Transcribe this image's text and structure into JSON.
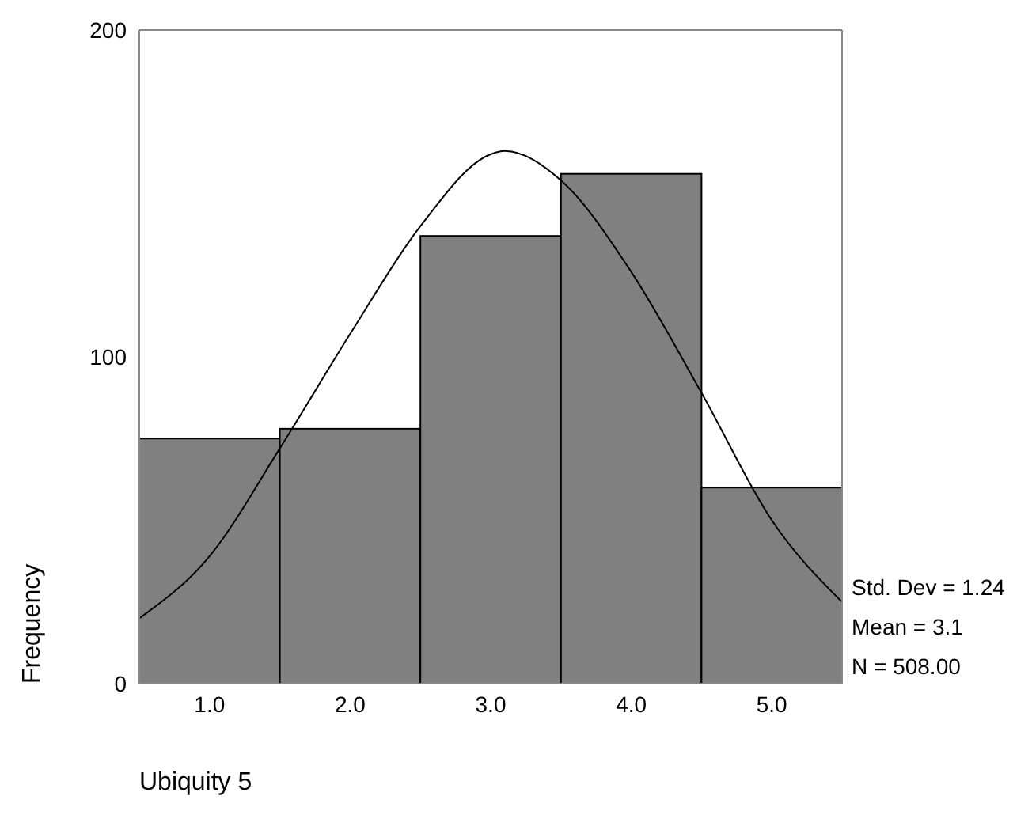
{
  "chart_data": {
    "type": "histogram",
    "xlabel": "Ubiquity 5",
    "ylabel": "Frequency",
    "bins": [
      0.5,
      1.5,
      2.5,
      3.5,
      4.5,
      5.5
    ],
    "values": [
      75,
      78,
      137,
      156,
      60
    ],
    "color": "#808080",
    "series": [
      {
        "type": "line",
        "color": "#000000",
        "x": [
          0.5,
          1.0,
          1.5,
          2.0,
          2.5,
          3.0,
          3.1,
          3.5,
          4.0,
          4.5,
          5.0,
          5.5
        ],
        "values": [
          20,
          39,
          72,
          107,
          140,
          162,
          163,
          154,
          126,
          89,
          50,
          25
        ]
      }
    ],
    "xlim": [
      0.5,
      5.5
    ],
    "xticks": [
      {
        "value": 1,
        "label": "1.0"
      },
      {
        "value": 2,
        "label": "2.0"
      },
      {
        "value": 3,
        "label": "3.0"
      },
      {
        "value": 4,
        "label": "4.0"
      },
      {
        "value": 5,
        "label": "5.0"
      }
    ],
    "ylim": [
      0,
      200
    ],
    "yticks": [
      0,
      100,
      200
    ],
    "annotations": [
      "Std. Dev = 1.24",
      "Mean = 3.1",
      "N = 508.00"
    ]
  }
}
